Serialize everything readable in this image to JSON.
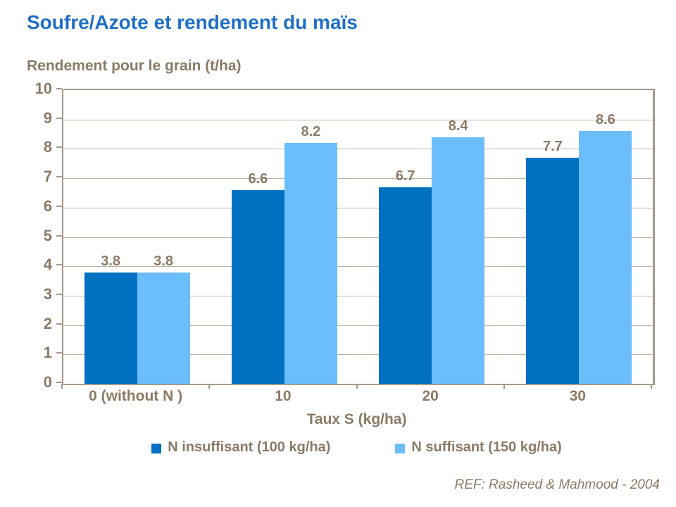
{
  "title": "Soufre/Azote et rendement du maïs",
  "y_axis_title": "Rendement pour le grain (t/ha)",
  "x_axis_title": "Taux S (kg/ha)",
  "footer_ref": "REF: Rasheed & Mahmood - 2004",
  "colors": {
    "title_blue": "#1F6FC6",
    "text_brown": "#8A7A66",
    "axis_line": "#A6998A",
    "gridline": "#BFB4A4",
    "series_dark_blue": "#0070C0",
    "series_light_blue": "#6CBDFC",
    "background": "#FFFFFF"
  },
  "chart_data": {
    "type": "bar",
    "title": "Soufre/Azote et rendement du maïs",
    "xlabel": "Taux S (kg/ha)",
    "ylabel": "Rendement pour le grain (t/ha)",
    "categories": [
      "0 (without N )",
      "10",
      "20",
      "30"
    ],
    "series": [
      {
        "name": "N insuffisant (100 kg/ha)",
        "color": "#0070C0",
        "values": [
          3.8,
          6.6,
          6.7,
          7.7
        ]
      },
      {
        "name": "N suffisant (150 kg/ha)",
        "color": "#6CBDFC",
        "values": [
          3.8,
          8.2,
          8.4,
          8.6
        ]
      }
    ],
    "data_labels": [
      [
        "3.8",
        "6.6",
        "6.7",
        "7.7"
      ],
      [
        "3.8",
        "8.2",
        "8.4",
        "8.6"
      ]
    ],
    "ylim": [
      0,
      10
    ],
    "ytick_step": 1,
    "yticks": [
      "0",
      "1",
      "2",
      "3",
      "4",
      "5",
      "6",
      "7",
      "8",
      "9",
      "10"
    ],
    "grid": true,
    "legend_position": "bottom",
    "annotation": "REF: Rasheed & Mahmood - 2004"
  }
}
